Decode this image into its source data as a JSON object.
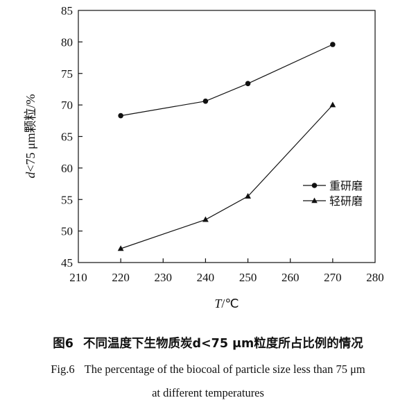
{
  "chart_data": {
    "type": "line",
    "x_ticks": [
      210,
      220,
      230,
      240,
      250,
      260,
      270,
      280
    ],
    "y_ticks": [
      45,
      50,
      55,
      60,
      65,
      70,
      75,
      80,
      85
    ],
    "xlim": [
      210,
      280
    ],
    "ylim": [
      45,
      85
    ],
    "xlabel_var": "T",
    "xlabel_unit": "/℃",
    "ylabel_var": "d",
    "ylabel_rest": "<75 μm颗粒/%",
    "grid": false,
    "legend_position": "right-middle",
    "series": [
      {
        "name": "重研磨",
        "marker": "circle",
        "x": [
          220,
          240,
          250,
          270
        ],
        "y": [
          68.3,
          70.6,
          73.4,
          79.6
        ]
      },
      {
        "name": "轻研磨",
        "marker": "triangle",
        "x": [
          220,
          240,
          250,
          270
        ],
        "y": [
          47.2,
          51.8,
          55.5,
          70.0
        ]
      }
    ]
  },
  "caption": {
    "cn_label": "图6",
    "cn_text": "不同温度下生物质炭d<75 μm粒度所占比例的情况",
    "en_label": "Fig.6",
    "en_line1": "The percentage of the biocoal of particle size less than 75 μm",
    "en_line2": "at different temperatures"
  }
}
